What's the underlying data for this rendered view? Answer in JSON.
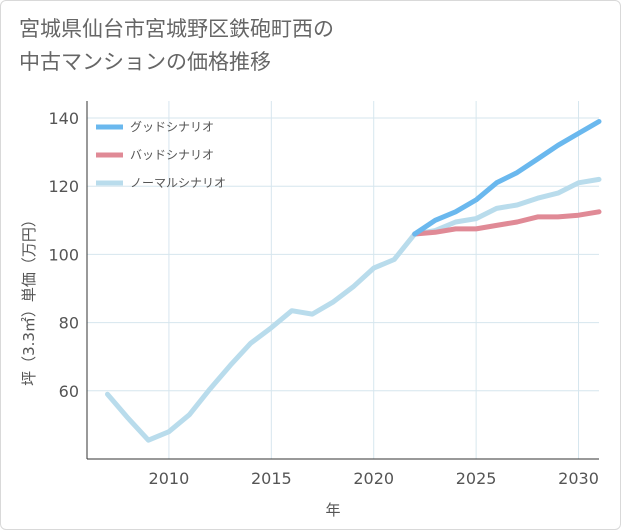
{
  "title": {
    "line1": "宮城県仙台市宮城野区鉄砲町西の",
    "line2": "中古マンションの価格推移"
  },
  "colors": {
    "good": "#6ab8ee",
    "bad": "#e08a96",
    "normal": "#b9dcec",
    "grid": "#d6e6ee",
    "axis": "#333333",
    "text": "#555555"
  },
  "chart_data": {
    "type": "line",
    "xlabel": "年",
    "ylabel": "坪（3.3㎡）単価（万円）",
    "xlim": [
      2006,
      2031
    ],
    "ylim": [
      40,
      145
    ],
    "xticks": [
      2010,
      2015,
      2020,
      2025,
      2030
    ],
    "yticks": [
      60,
      80,
      100,
      120,
      140
    ],
    "grid": true,
    "legend_position": "top-left",
    "series": [
      {
        "name": "グッドシナリオ",
        "color_key": "good",
        "x": [
          2022,
          2023,
          2024,
          2025,
          2026,
          2027,
          2028,
          2029,
          2030,
          2031
        ],
        "y": [
          106,
          110,
          112.5,
          116,
          121,
          124,
          128,
          132,
          135.5,
          139
        ]
      },
      {
        "name": "バッドシナリオ",
        "color_key": "bad",
        "x": [
          2022,
          2023,
          2024,
          2025,
          2026,
          2027,
          2028,
          2029,
          2030,
          2031
        ],
        "y": [
          106,
          106.5,
          107.5,
          107.5,
          108.5,
          109.5,
          111,
          111,
          111.5,
          112.5
        ]
      },
      {
        "name": "ノーマルシナリオ",
        "color_key": "normal",
        "x": [
          2007,
          2008,
          2009,
          2010,
          2011,
          2012,
          2013,
          2014,
          2015,
          2016,
          2017,
          2018,
          2019,
          2020,
          2021,
          2022,
          2023,
          2024,
          2025,
          2026,
          2027,
          2028,
          2029,
          2030,
          2031
        ],
        "y": [
          59,
          52,
          45.5,
          48,
          53,
          60.5,
          67.5,
          74,
          78.5,
          83.5,
          82.5,
          86,
          90.5,
          96,
          98.5,
          106,
          107,
          109.5,
          110.5,
          113.5,
          114.5,
          116.5,
          118,
          121,
          122
        ]
      }
    ]
  }
}
